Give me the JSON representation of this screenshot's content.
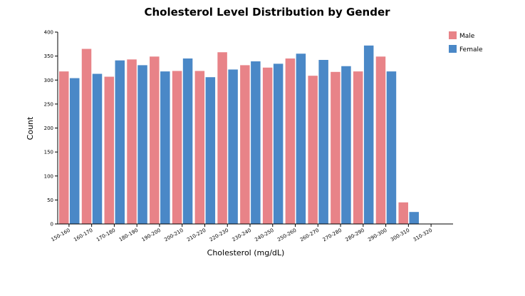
{
  "chart_data": {
    "type": "bar",
    "title": "Cholesterol Level Distribution by Gender",
    "xlabel": "Cholesterol (mg/dL)",
    "ylabel": "Count",
    "ylim": [
      0,
      400
    ],
    "yticks": [
      0,
      50,
      100,
      150,
      200,
      250,
      300,
      350,
      400
    ],
    "legend_position": "top-right",
    "grid": false,
    "categories": [
      "150-160",
      "160-170",
      "170-180",
      "180-190",
      "190-200",
      "200-210",
      "210-220",
      "220-230",
      "230-240",
      "240-250",
      "250-260",
      "260-270",
      "270-280",
      "280-290",
      "290-300",
      "300-310",
      "310-320"
    ],
    "series": [
      {
        "name": "Male",
        "color": "#e88388",
        "values": [
          318,
          365,
          307,
          343,
          349,
          319,
          319,
          358,
          331,
          326,
          345,
          309,
          317,
          318,
          349,
          45,
          0
        ]
      },
      {
        "name": "Female",
        "color": "#4a88c7",
        "values": [
          304,
          313,
          341,
          331,
          318,
          345,
          306,
          322,
          339,
          334,
          355,
          342,
          329,
          372,
          318,
          25,
          0
        ]
      }
    ]
  }
}
